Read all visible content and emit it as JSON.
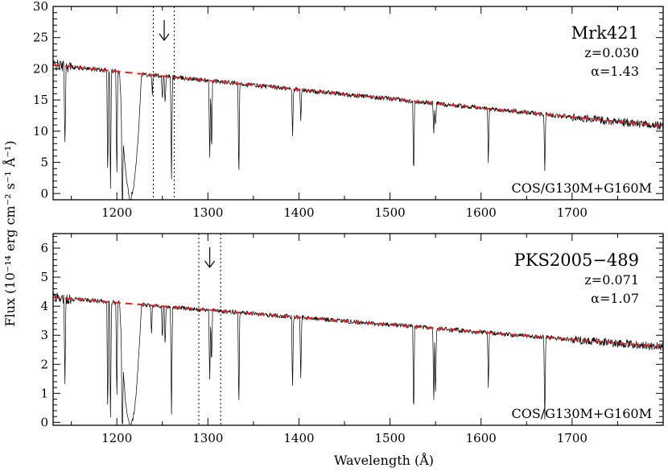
{
  "chart_data": [
    {
      "type": "line",
      "panel": "top",
      "object": "Mrk421",
      "redshift": "z=0.030",
      "alpha": "α=1.43",
      "instrument": "COS/G130M+G160M",
      "xlim": [
        1130,
        1800
      ],
      "ylim": [
        -1,
        30
      ],
      "xticks": [
        1200,
        1300,
        1400,
        1500,
        1600,
        1700
      ],
      "yticks": [
        0,
        5,
        10,
        15,
        20,
        25,
        30
      ],
      "continuum_model": {
        "style": "dashed",
        "color": "#e02020",
        "x": [
          1130,
          1800
        ],
        "y": [
          20.6,
          10.8
        ]
      },
      "markers": {
        "dotted_lines_x": [
          1240,
          1263
        ],
        "arrow_x": 1252
      },
      "absorption_lines": [
        {
          "x": 1143,
          "depth": 13
        },
        {
          "x": 1190,
          "depth": 18
        },
        {
          "x": 1193,
          "depth": 19
        },
        {
          "x": 1200,
          "depth": 18
        },
        {
          "x": 1206,
          "depth": 17
        },
        {
          "x": 1215,
          "depth": 20
        },
        {
          "x": 1239,
          "depth": 3
        },
        {
          "x": 1250,
          "depth": 4
        },
        {
          "x": 1253,
          "depth": 5
        },
        {
          "x": 1260,
          "depth": 17
        },
        {
          "x": 1302,
          "depth": 13
        },
        {
          "x": 1304,
          "depth": 12
        },
        {
          "x": 1334,
          "depth": 16
        },
        {
          "x": 1393,
          "depth": 8
        },
        {
          "x": 1402,
          "depth": 5
        },
        {
          "x": 1526,
          "depth": 13
        },
        {
          "x": 1548,
          "depth": 5
        },
        {
          "x": 1550,
          "depth": 4
        },
        {
          "x": 1608,
          "depth": 9
        },
        {
          "x": 1670,
          "depth": 9
        }
      ],
      "lya_trough": {
        "center": 1215,
        "width": 12
      }
    },
    {
      "type": "line",
      "panel": "bottom",
      "object": "PKS2005−489",
      "redshift": "z=0.071",
      "alpha": "α=1.07",
      "instrument": "COS/G130M+G160M",
      "xlim": [
        1130,
        1800
      ],
      "ylim": [
        -0.1,
        6.5
      ],
      "xticks": [
        1200,
        1300,
        1400,
        1500,
        1600,
        1700
      ],
      "yticks": [
        0,
        1,
        2,
        3,
        4,
        5,
        6
      ],
      "continuum_model": {
        "style": "dashed",
        "color": "#e02020",
        "x": [
          1130,
          1800
        ],
        "y": [
          4.3,
          2.6
        ]
      },
      "markers": {
        "dotted_lines_x": [
          1290,
          1314
        ],
        "arrow_x": 1302
      },
      "absorption_lines": [
        {
          "x": 1143,
          "depth": 3.0
        },
        {
          "x": 1190,
          "depth": 4.0
        },
        {
          "x": 1193,
          "depth": 4.0
        },
        {
          "x": 1200,
          "depth": 3.5
        },
        {
          "x": 1206,
          "depth": 4.0
        },
        {
          "x": 1215,
          "depth": 4.1
        },
        {
          "x": 1238,
          "depth": 1.0
        },
        {
          "x": 1250,
          "depth": 1.2
        },
        {
          "x": 1253,
          "depth": 1.4
        },
        {
          "x": 1260,
          "depth": 3.8
        },
        {
          "x": 1302,
          "depth": 2.5
        },
        {
          "x": 1304,
          "depth": 2.0
        },
        {
          "x": 1334,
          "depth": 3.4
        },
        {
          "x": 1393,
          "depth": 2.6
        },
        {
          "x": 1402,
          "depth": 2.2
        },
        {
          "x": 1526,
          "depth": 3.3
        },
        {
          "x": 1548,
          "depth": 2.7
        },
        {
          "x": 1550,
          "depth": 2.5
        },
        {
          "x": 1608,
          "depth": 2.0
        },
        {
          "x": 1670,
          "depth": 2.9
        }
      ],
      "lya_trough": {
        "center": 1215,
        "width": 12
      }
    }
  ],
  "labels": {
    "xlabel": "Wavelength (Å)",
    "ylabel": "Flux (10⁻¹⁴ erg cm⁻² s⁻¹ Å⁻¹)"
  }
}
